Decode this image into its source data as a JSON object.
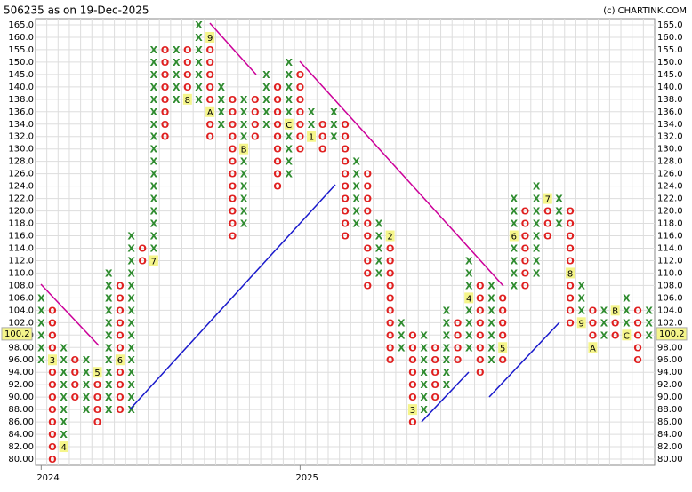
{
  "chart_data": {
    "type": "point-figure",
    "title": "506235 as on 19-Dec-2025",
    "credit": "(c) CHARTINK.COM",
    "grid": true,
    "x_color": "#2e8b2e",
    "o_color": "#e02020",
    "yticks": [
      {
        "value": 80,
        "label": "80.00"
      },
      {
        "value": 82,
        "label": "82.00"
      },
      {
        "value": 84,
        "label": "84.00"
      },
      {
        "value": 86,
        "label": "86.00"
      },
      {
        "value": 88,
        "label": "88.00"
      },
      {
        "value": 90,
        "label": "90.00"
      },
      {
        "value": 92,
        "label": "92.00"
      },
      {
        "value": 94,
        "label": "94.00"
      },
      {
        "value": 96,
        "label": "96.00"
      },
      {
        "value": 98,
        "label": "98.00"
      },
      {
        "value": 100,
        "label": "100.0"
      },
      {
        "value": 102,
        "label": "102.0"
      },
      {
        "value": 104,
        "label": "104.0"
      },
      {
        "value": 106,
        "label": "106.0"
      },
      {
        "value": 108,
        "label": "108.0"
      },
      {
        "value": 110,
        "label": "110.0"
      },
      {
        "value": 112,
        "label": "112.0"
      },
      {
        "value": 114,
        "label": "114.0"
      },
      {
        "value": 116,
        "label": "116.0"
      },
      {
        "value": 118,
        "label": "118.0"
      },
      {
        "value": 120,
        "label": "120.0"
      },
      {
        "value": 122,
        "label": "122.0"
      },
      {
        "value": 124,
        "label": "124.0"
      },
      {
        "value": 126,
        "label": "126.0"
      },
      {
        "value": 128,
        "label": "128.0"
      },
      {
        "value": 130,
        "label": "130.0"
      },
      {
        "value": 132,
        "label": "132.0"
      },
      {
        "value": 134,
        "label": "134.0"
      },
      {
        "value": 136,
        "label": "136.0"
      },
      {
        "value": 138,
        "label": "138.0"
      },
      {
        "value": 140,
        "label": "140.0"
      },
      {
        "value": 145,
        "label": "145.0"
      },
      {
        "value": 150,
        "label": "150.0"
      },
      {
        "value": 155,
        "label": "155.0"
      },
      {
        "value": 160,
        "label": "160.0"
      },
      {
        "value": 165,
        "label": "165.0"
      }
    ],
    "last_price": 100.2,
    "x_labels": [
      {
        "text": "2024",
        "column": 0
      },
      {
        "text": "2025",
        "column": 23
      }
    ],
    "columns": [
      {
        "type": "X",
        "low": 96,
        "high": 106
      },
      {
        "type": "O",
        "low": 80,
        "high": 104,
        "labels": [
          {
            "level": 96,
            "text": "3"
          }
        ]
      },
      {
        "type": "X",
        "low": 82,
        "high": 98,
        "labels": [
          {
            "level": 82,
            "text": "4"
          }
        ]
      },
      {
        "type": "O",
        "low": 90,
        "high": 96
      },
      {
        "type": "X",
        "low": 88,
        "high": 96
      },
      {
        "type": "O",
        "low": 86,
        "high": 94,
        "labels": [
          {
            "level": 94,
            "text": "5"
          }
        ]
      },
      {
        "type": "X",
        "low": 88,
        "high": 110
      },
      {
        "type": "O",
        "low": 88,
        "high": 108,
        "labels": [
          {
            "level": 96,
            "text": "6"
          }
        ]
      },
      {
        "type": "X",
        "low": 88,
        "high": 116
      },
      {
        "type": "O",
        "low": 112,
        "high": 114
      },
      {
        "type": "X",
        "low": 112,
        "high": 155,
        "labels": [
          {
            "level": 112,
            "text": "7"
          }
        ]
      },
      {
        "type": "O",
        "low": 132,
        "high": 155
      },
      {
        "type": "X",
        "low": 138,
        "high": 155
      },
      {
        "type": "O",
        "low": 138,
        "high": 155,
        "labels": [
          {
            "level": 138,
            "text": "8"
          }
        ]
      },
      {
        "type": "X",
        "low": 138,
        "high": 165
      },
      {
        "type": "O",
        "low": 132,
        "high": 160,
        "labels": [
          {
            "level": 160,
            "text": "9"
          },
          {
            "level": 136,
            "text": "A"
          }
        ]
      },
      {
        "type": "X",
        "low": 134,
        "high": 140
      },
      {
        "type": "O",
        "low": 116,
        "high": 138
      },
      {
        "type": "X",
        "low": 118,
        "high": 138,
        "labels": [
          {
            "level": 130,
            "text": "B"
          }
        ]
      },
      {
        "type": "O",
        "low": 132,
        "high": 138
      },
      {
        "type": "X",
        "low": 134,
        "high": 145
      },
      {
        "type": "O",
        "low": 124,
        "high": 140
      },
      {
        "type": "X",
        "low": 126,
        "high": 150,
        "labels": [
          {
            "level": 134,
            "text": "C"
          }
        ]
      },
      {
        "type": "O",
        "low": 130,
        "high": 145
      },
      {
        "type": "X",
        "low": 132,
        "high": 136,
        "labels": [
          {
            "level": 132,
            "text": "1"
          }
        ]
      },
      {
        "type": "O",
        "low": 130,
        "high": 134
      },
      {
        "type": "X",
        "low": 132,
        "high": 136
      },
      {
        "type": "O",
        "low": 116,
        "high": 134
      },
      {
        "type": "X",
        "low": 118,
        "high": 128
      },
      {
        "type": "O",
        "low": 108,
        "high": 126
      },
      {
        "type": "X",
        "low": 110,
        "high": 118
      },
      {
        "type": "O",
        "low": 96,
        "high": 116,
        "labels": [
          {
            "level": 116,
            "text": "2"
          }
        ]
      },
      {
        "type": "X",
        "low": 98,
        "high": 102
      },
      {
        "type": "O",
        "low": 86,
        "high": 100,
        "labels": [
          {
            "level": 88,
            "text": "3"
          }
        ]
      },
      {
        "type": "X",
        "low": 88,
        "high": 100
      },
      {
        "type": "O",
        "low": 90,
        "high": 98
      },
      {
        "type": "X",
        "low": 92,
        "high": 104
      },
      {
        "type": "O",
        "low": 96,
        "high": 102
      },
      {
        "type": "X",
        "low": 98,
        "high": 112,
        "labels": [
          {
            "level": 106,
            "text": "4"
          }
        ]
      },
      {
        "type": "O",
        "low": 94,
        "high": 108
      },
      {
        "type": "X",
        "low": 96,
        "high": 108
      },
      {
        "type": "O",
        "low": 96,
        "high": 106,
        "labels": [
          {
            "level": 98,
            "text": "5"
          }
        ]
      },
      {
        "type": "X",
        "low": 108,
        "high": 122,
        "labels": [
          {
            "level": 116,
            "text": "6"
          }
        ]
      },
      {
        "type": "O",
        "low": 108,
        "high": 120
      },
      {
        "type": "X",
        "low": 110,
        "high": 124
      },
      {
        "type": "O",
        "low": 116,
        "high": 122,
        "labels": [
          {
            "level": 122,
            "text": "7"
          }
        ]
      },
      {
        "type": "X",
        "low": 118,
        "high": 122
      },
      {
        "type": "O",
        "low": 102,
        "high": 120,
        "labels": [
          {
            "level": 110,
            "text": "8"
          }
        ]
      },
      {
        "type": "X",
        "low": 102,
        "high": 108,
        "labels": [
          {
            "level": 102,
            "text": "9"
          }
        ]
      },
      {
        "type": "O",
        "low": 98,
        "high": 104,
        "labels": [
          {
            "level": 98,
            "text": "A"
          }
        ]
      },
      {
        "type": "X",
        "low": 100,
        "high": 104
      },
      {
        "type": "O",
        "low": 100,
        "high": 104,
        "labels": [
          {
            "level": 104,
            "text": "B"
          }
        ]
      },
      {
        "type": "X",
        "low": 100,
        "high": 106,
        "labels": [
          {
            "level": 100,
            "text": "C"
          }
        ]
      },
      {
        "type": "O",
        "low": 96,
        "high": 104
      },
      {
        "type": "X",
        "low": 100,
        "high": 104
      }
    ]
  }
}
